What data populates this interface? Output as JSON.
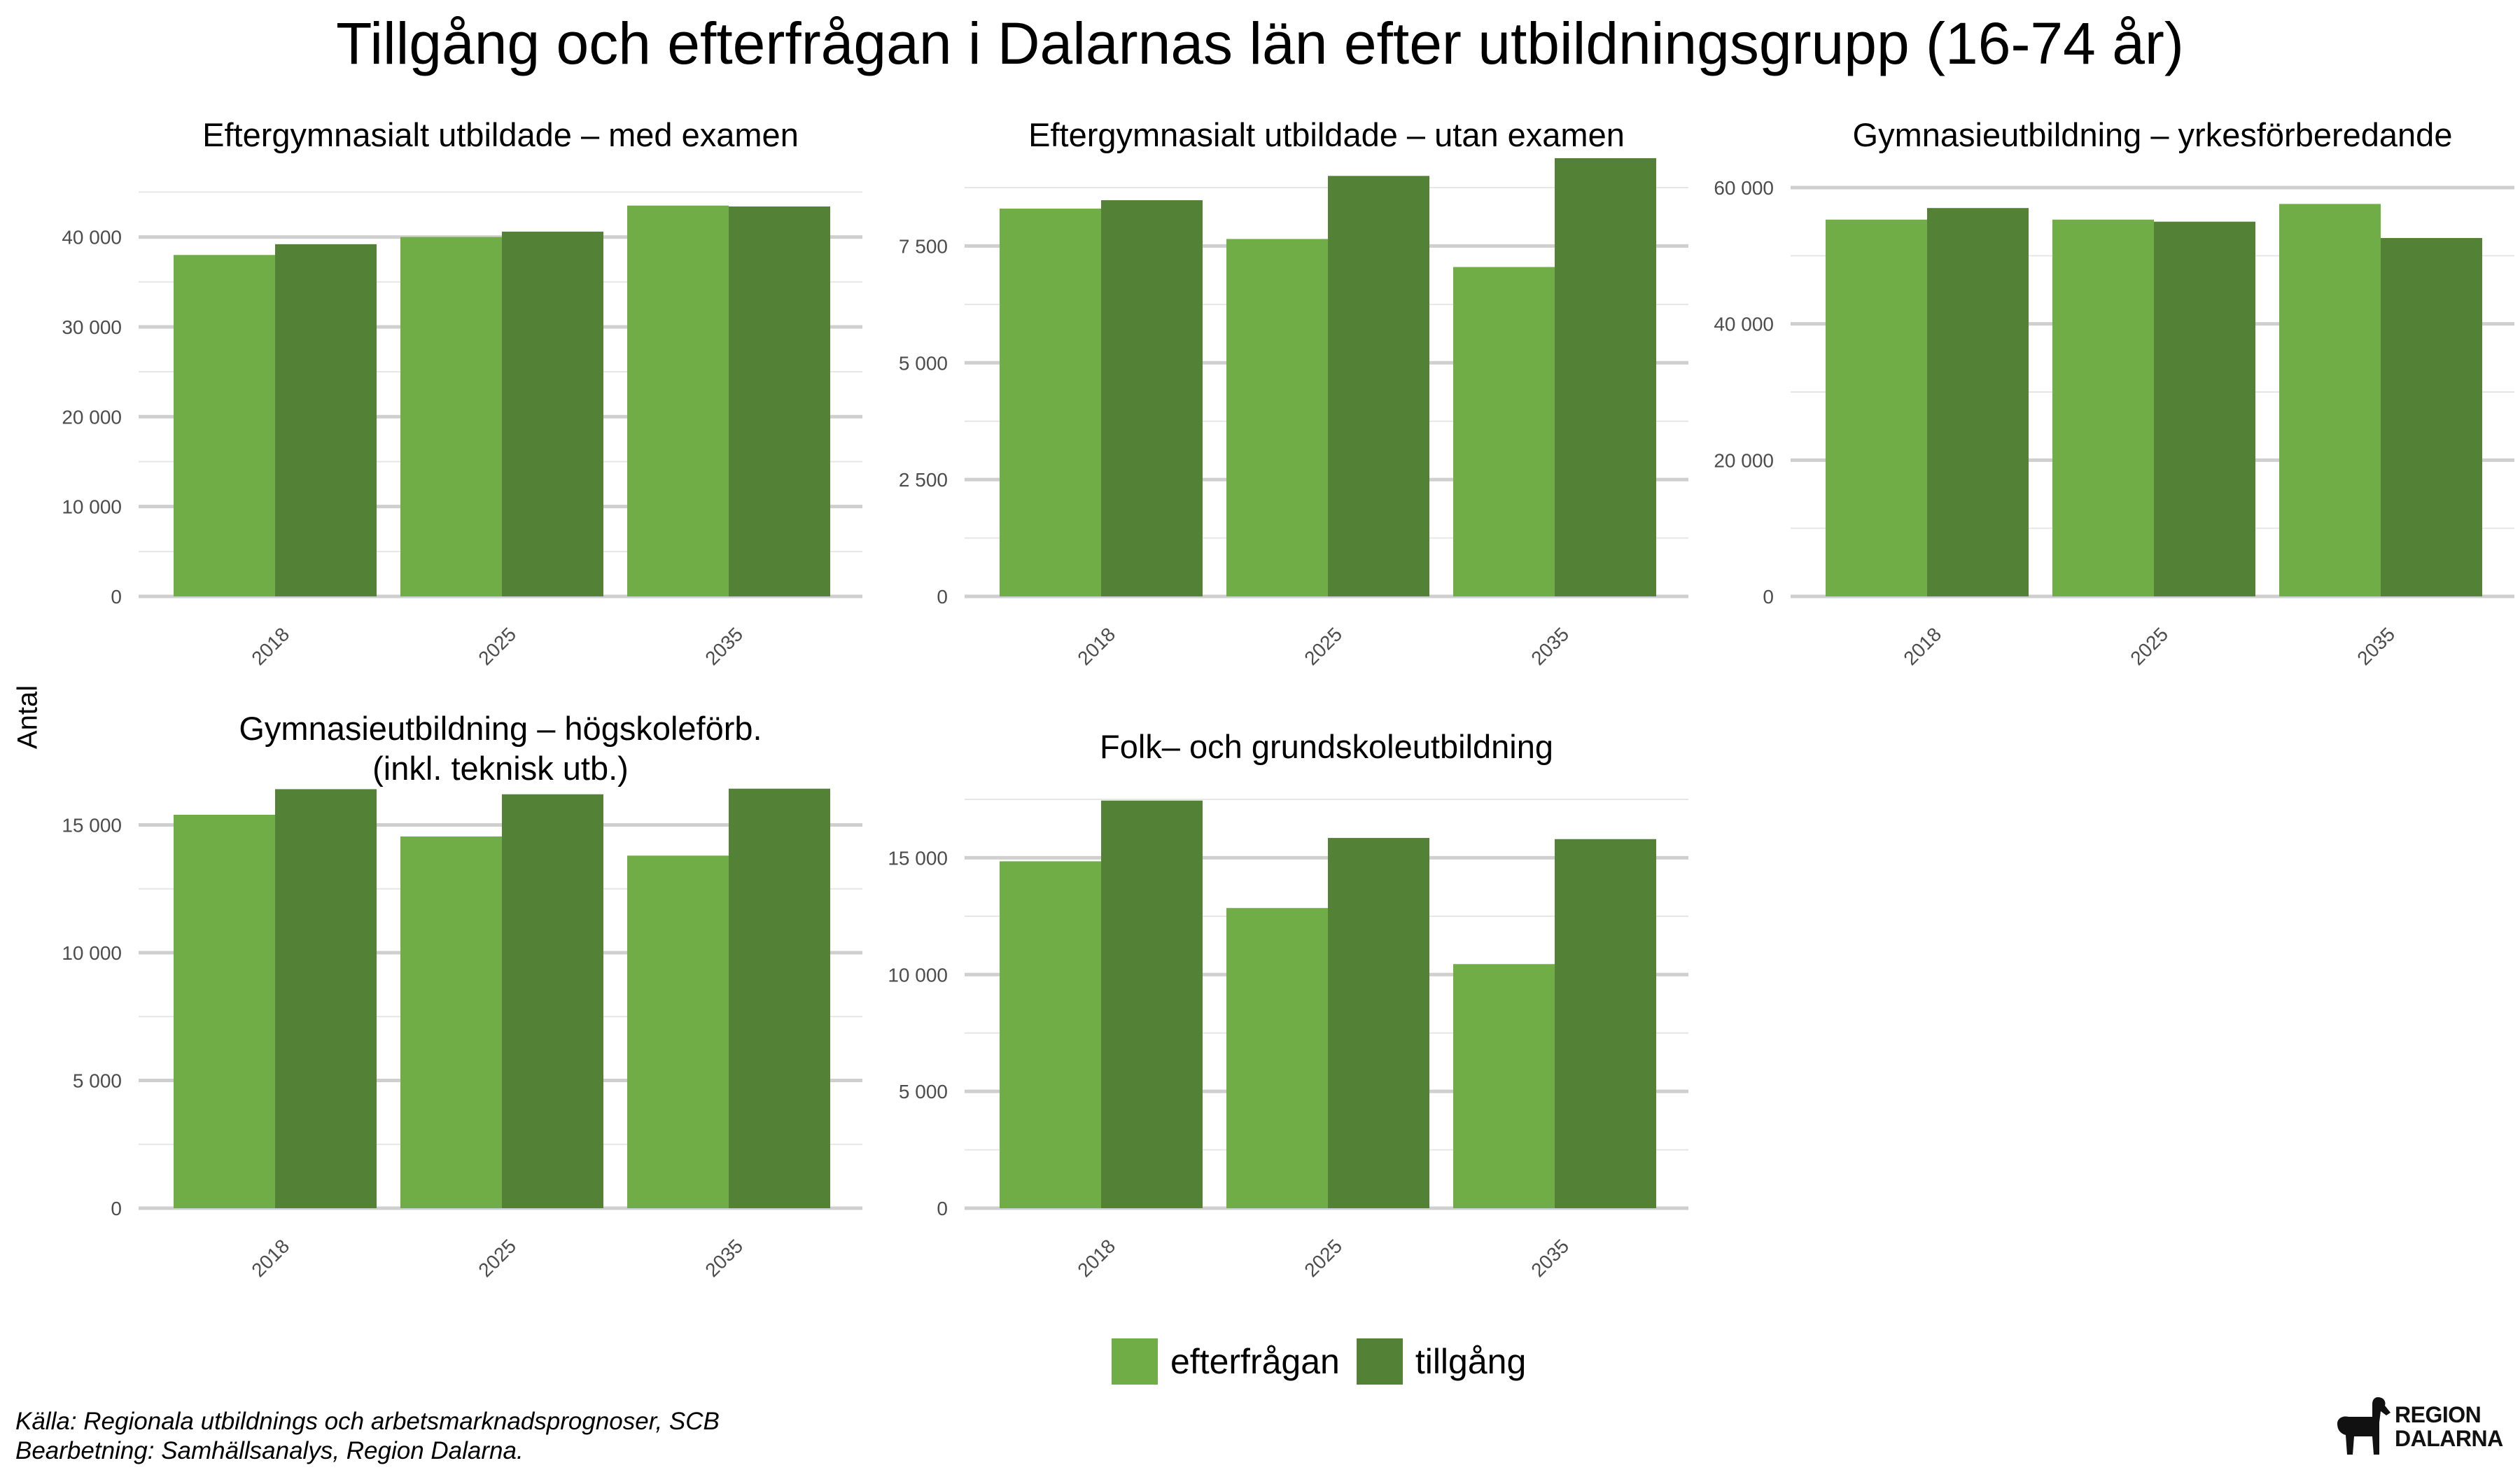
{
  "title": "Tillgång och efterfrågan i Dalarnas län efter utbildningsgrupp (16-74 år)",
  "ylabel": "Antal",
  "legend": [
    {
      "name": "efterfrågan",
      "color": "#70ad47"
    },
    {
      "name": "tillgång",
      "color": "#538135"
    }
  ],
  "caption": {
    "source": "Källa: Regionala utbildnings och arbetsmarknadsprognoser, SCB",
    "processing": "Bearbetning: Samhällsanalys, Region Dalarna."
  },
  "logo": {
    "line1": "REGION",
    "line2": "DALARNA"
  },
  "chart_data": [
    {
      "type": "bar",
      "title": "Eftergymnasialt utbildade – med examen",
      "categories": [
        "2018",
        "2025",
        "2035"
      ],
      "series": [
        {
          "name": "efterfrågan",
          "values": [
            38000,
            40000,
            43500
          ]
        },
        {
          "name": "tillgång",
          "values": [
            39200,
            40600,
            43400
          ]
        }
      ],
      "yticks": [
        0,
        10000,
        20000,
        30000,
        40000
      ],
      "ytick_labels": [
        "0",
        "10 000",
        "20 000",
        "30 000",
        "40 000"
      ],
      "ylim": [
        0,
        45500
      ]
    },
    {
      "type": "bar",
      "title": "Eftergymnasialt utbildade – utan examen",
      "categories": [
        "2018",
        "2025",
        "2035"
      ],
      "series": [
        {
          "name": "efterfrågan",
          "values": [
            8300,
            7650,
            7050
          ]
        },
        {
          "name": "tillgång",
          "values": [
            8480,
            9000,
            9380
          ]
        }
      ],
      "yticks": [
        0,
        2500,
        5000,
        7500
      ],
      "ytick_labels": [
        "0",
        "2 500",
        "5 000",
        "7 500"
      ],
      "ylim": [
        0,
        8750
      ]
    },
    {
      "type": "bar",
      "title": "Gymnasieutbildning – yrkesförberedande",
      "categories": [
        "2018",
        "2025",
        "2035"
      ],
      "series": [
        {
          "name": "efterfrågan",
          "values": [
            55300,
            55300,
            57600
          ]
        },
        {
          "name": "tillgång",
          "values": [
            57000,
            55000,
            52600
          ]
        }
      ],
      "yticks": [
        0,
        20000,
        40000,
        60000
      ],
      "ytick_labels": [
        "0",
        "20 000",
        "40 000",
        "60 000"
      ],
      "ylim": [
        0,
        60000
      ]
    },
    {
      "type": "bar",
      "title": "Gymnasieutbildning – högskoleförb.",
      "title_line2": "(inkl. teknisk utb.)",
      "categories": [
        "2018",
        "2025",
        "2035"
      ],
      "series": [
        {
          "name": "efterfrågan",
          "values": [
            15400,
            14550,
            13800
          ]
        },
        {
          "name": "tillgång",
          "values": [
            16400,
            16200,
            16420
          ]
        }
      ],
      "yticks": [
        0,
        5000,
        10000,
        15000
      ],
      "ytick_labels": [
        "0",
        "5 000",
        "10 000",
        "15 000"
      ],
      "ylim": [
        0,
        16000
      ]
    },
    {
      "type": "bar",
      "title": "Folk– och grundskoleutbildning",
      "categories": [
        "2018",
        "2025",
        "2035"
      ],
      "series": [
        {
          "name": "efterfrågan",
          "values": [
            14850,
            12850,
            10450
          ]
        },
        {
          "name": "tillgång",
          "values": [
            17450,
            15850,
            15800
          ]
        }
      ],
      "yticks": [
        0,
        5000,
        10000,
        15000
      ],
      "ytick_labels": [
        "0",
        "5 000",
        "10 000",
        "15 000"
      ],
      "ylim": [
        0,
        17500
      ]
    }
  ]
}
